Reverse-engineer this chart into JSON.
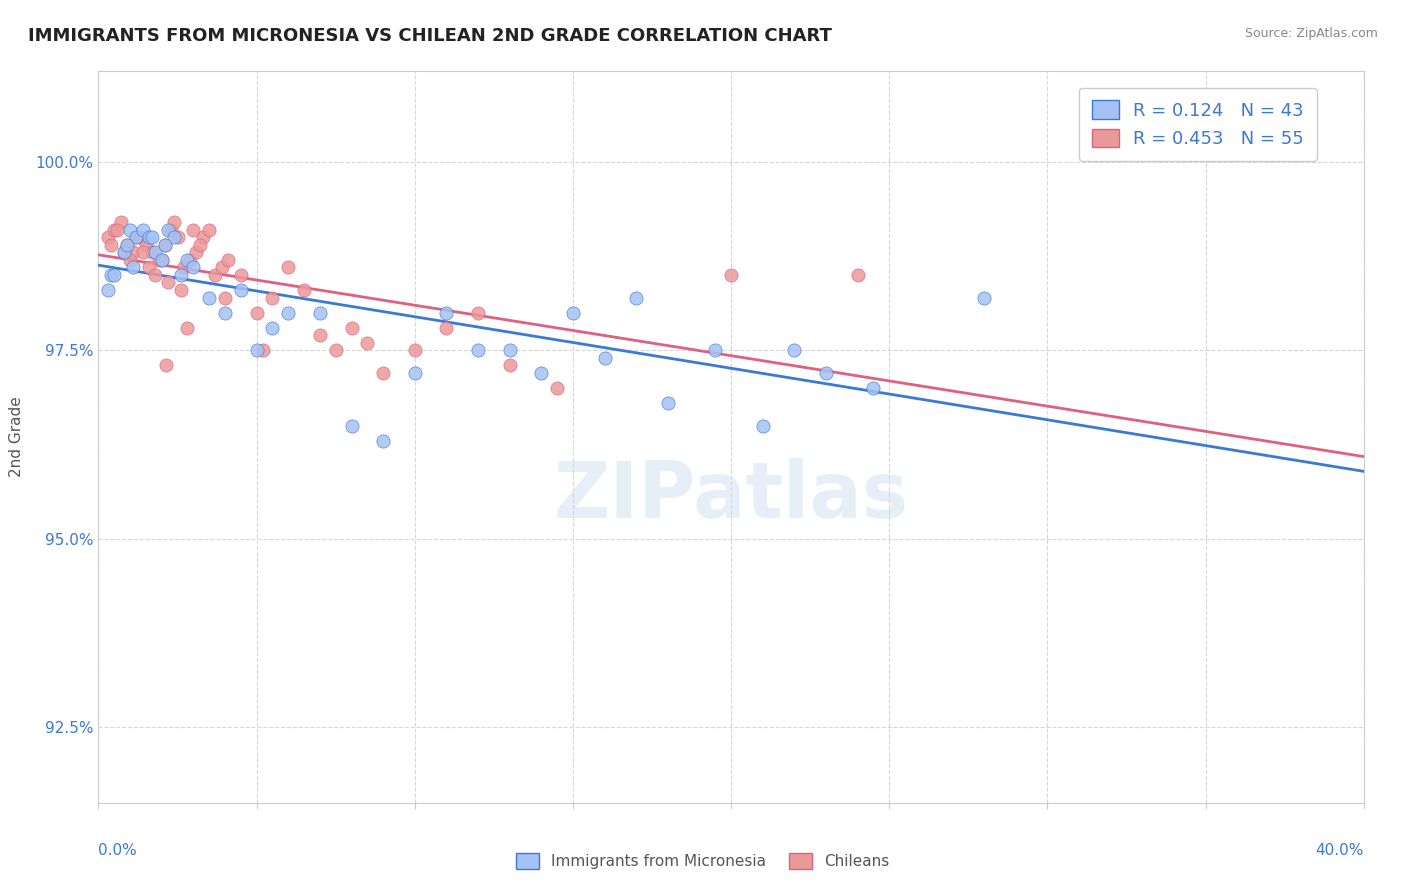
{
  "title": "IMMIGRANTS FROM MICRONESIA VS CHILEAN 2ND GRADE CORRELATION CHART",
  "source": "Source: ZipAtlas.com",
  "ylabel": "2nd Grade",
  "ylim": [
    91.5,
    101.2
  ],
  "xlim": [
    0.0,
    40.0
  ],
  "yticks": [
    92.5,
    95.0,
    97.5,
    100.0
  ],
  "ytick_labels": [
    "92.5%",
    "95.0%",
    "97.5%",
    "100.0%"
  ],
  "blue_R": 0.124,
  "blue_N": 43,
  "pink_R": 0.453,
  "pink_N": 55,
  "blue_color": "#a4c2f4",
  "pink_color": "#ea9999",
  "blue_line_color": "#3c78d8",
  "pink_line_color": "#e06080",
  "legend_label_blue": "Immigrants from Micronesia",
  "legend_label_pink": "Chileans",
  "watermark": "ZIPatlas",
  "background_color": "#ffffff",
  "grid_color": "#cccccc",
  "blue_scatter_x": [
    0.4,
    0.8,
    1.0,
    1.2,
    1.4,
    1.6,
    1.8,
    2.0,
    2.2,
    2.4,
    2.6,
    2.8,
    3.0,
    3.5,
    4.0,
    4.5,
    5.0,
    5.5,
    6.0,
    7.0,
    8.0,
    9.0,
    10.0,
    11.0,
    12.0,
    13.0,
    14.0,
    15.0,
    16.0,
    17.0,
    18.0,
    19.5,
    21.0,
    22.0,
    23.0,
    24.5,
    0.3,
    0.5,
    0.9,
    1.1,
    1.7,
    2.1,
    28.0
  ],
  "blue_scatter_y": [
    98.5,
    98.8,
    99.1,
    99.0,
    99.1,
    99.0,
    98.8,
    98.7,
    99.1,
    99.0,
    98.5,
    98.7,
    98.6,
    98.2,
    98.0,
    98.3,
    97.5,
    97.8,
    98.0,
    98.0,
    96.5,
    96.3,
    97.2,
    98.0,
    97.5,
    97.5,
    97.2,
    98.0,
    97.4,
    98.2,
    96.8,
    97.5,
    96.5,
    97.5,
    97.2,
    97.0,
    98.3,
    98.5,
    98.9,
    98.6,
    99.0,
    98.9,
    98.2
  ],
  "pink_scatter_x": [
    0.3,
    0.5,
    0.7,
    0.9,
    1.1,
    1.3,
    1.5,
    1.7,
    1.9,
    2.1,
    2.3,
    2.5,
    2.7,
    2.9,
    3.1,
    3.3,
    3.5,
    3.7,
    3.9,
    4.1,
    4.5,
    5.0,
    5.5,
    6.0,
    6.5,
    7.0,
    7.5,
    8.0,
    9.0,
    10.0,
    11.0,
    12.0,
    13.0,
    14.5,
    0.4,
    0.6,
    0.8,
    1.0,
    1.2,
    1.4,
    1.6,
    1.8,
    2.0,
    2.2,
    2.4,
    2.6,
    2.8,
    3.0,
    3.2,
    4.0,
    5.2,
    8.5,
    20.0,
    24.0,
    2.15
  ],
  "pink_scatter_y": [
    99.0,
    99.1,
    99.2,
    98.9,
    98.8,
    99.0,
    98.9,
    98.8,
    98.7,
    98.9,
    99.1,
    99.0,
    98.6,
    98.7,
    98.8,
    99.0,
    99.1,
    98.5,
    98.6,
    98.7,
    98.5,
    98.0,
    98.2,
    98.6,
    98.3,
    97.7,
    97.5,
    97.8,
    97.2,
    97.5,
    97.8,
    98.0,
    97.3,
    97.0,
    98.9,
    99.1,
    98.8,
    98.7,
    99.0,
    98.8,
    98.6,
    98.5,
    98.7,
    98.4,
    99.2,
    98.3,
    97.8,
    99.1,
    98.9,
    98.2,
    97.5,
    97.6,
    98.5,
    98.5,
    97.3
  ]
}
